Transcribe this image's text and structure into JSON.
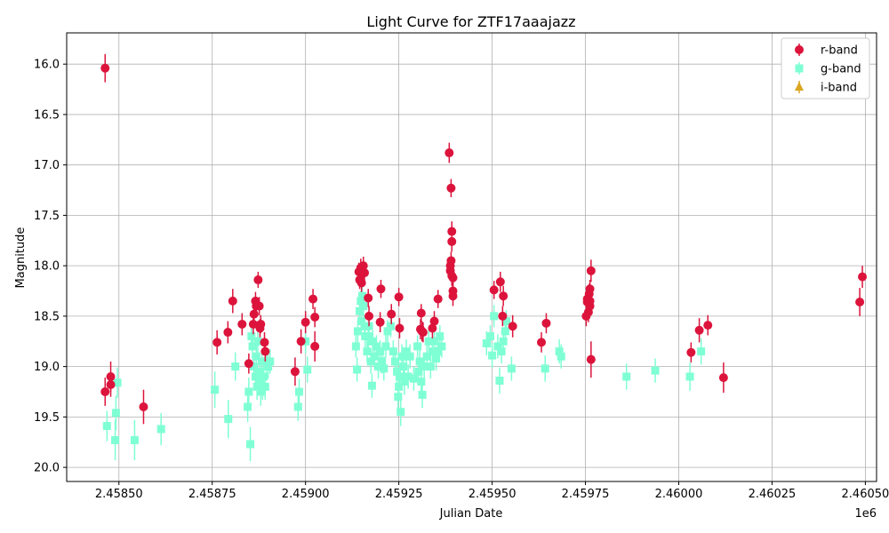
{
  "chart_data": {
    "type": "scatter",
    "title": "Light Curve for ZTF17aaajazz",
    "xlabel": "Julian Date",
    "ylabel": "Magnitude",
    "x_offset_label": "1e6",
    "xlim": [
      2.45836,
      2.46053
    ],
    "ylim": [
      20.14,
      15.69
    ],
    "y_inverted": true,
    "grid": true,
    "legend_position": "top-right",
    "x_ticks": [
      {
        "value": 2.4585,
        "label": "2.45850"
      },
      {
        "value": 2.45875,
        "label": "2.45875"
      },
      {
        "value": 2.459,
        "label": "2.45900"
      },
      {
        "value": 2.45925,
        "label": "2.45925"
      },
      {
        "value": 2.4595,
        "label": "2.45950"
      },
      {
        "value": 2.45975,
        "label": "2.45975"
      },
      {
        "value": 2.46,
        "label": "2.46000"
      },
      {
        "value": 2.46025,
        "label": "2.46025"
      },
      {
        "value": 2.4605,
        "label": "2.46050"
      }
    ],
    "y_ticks": [
      {
        "value": 16.0,
        "label": "16.0"
      },
      {
        "value": 16.5,
        "label": "16.5"
      },
      {
        "value": 17.0,
        "label": "17.0"
      },
      {
        "value": 17.5,
        "label": "17.5"
      },
      {
        "value": 18.0,
        "label": "18.0"
      },
      {
        "value": 18.5,
        "label": "18.5"
      },
      {
        "value": 19.0,
        "label": "19.0"
      },
      {
        "value": 19.5,
        "label": "19.5"
      },
      {
        "value": 20.0,
        "label": "20.0"
      }
    ],
    "series": [
      {
        "name": "r-band",
        "color": "#dc143c",
        "marker": "circle",
        "points": [
          [
            2.458463,
            16.04,
            0.14
          ],
          [
            2.458463,
            19.25,
            0.14
          ],
          [
            2.458478,
            19.1,
            0.15
          ],
          [
            2.458478,
            19.18,
            0.12
          ],
          [
            2.458566,
            19.4,
            0.17
          ],
          [
            2.458763,
            18.76,
            0.12
          ],
          [
            2.458792,
            18.66,
            0.11
          ],
          [
            2.458805,
            18.35,
            0.12
          ],
          [
            2.45883,
            18.58,
            0.11
          ],
          [
            2.458848,
            18.97,
            0.1
          ],
          [
            2.45886,
            18.58,
            0.1
          ],
          [
            2.458862,
            18.48,
            0.09
          ],
          [
            2.458866,
            18.35,
            0.09
          ],
          [
            2.458868,
            18.4,
            0.09
          ],
          [
            2.458873,
            18.14,
            0.08
          ],
          [
            2.458876,
            18.4,
            0.09
          ],
          [
            2.458878,
            18.62,
            0.09
          ],
          [
            2.45888,
            18.58,
            0.09
          ],
          [
            2.45889,
            18.76,
            0.1
          ],
          [
            2.458892,
            18.85,
            0.1
          ],
          [
            2.458972,
            19.05,
            0.14
          ],
          [
            2.458988,
            18.75,
            0.12
          ],
          [
            2.459,
            18.56,
            0.11
          ],
          [
            2.45902,
            18.33,
            0.1
          ],
          [
            2.459025,
            18.51,
            0.1
          ],
          [
            2.459025,
            18.8,
            0.15
          ],
          [
            2.459143,
            18.06,
            0.09
          ],
          [
            2.459145,
            18.14,
            0.09
          ],
          [
            2.459148,
            18.02,
            0.09
          ],
          [
            2.45915,
            18.17,
            0.09
          ],
          [
            2.459152,
            18.08,
            0.09
          ],
          [
            2.459155,
            18.0,
            0.09
          ],
          [
            2.459158,
            18.07,
            0.1
          ],
          [
            2.459168,
            18.32,
            0.09
          ],
          [
            2.45917,
            18.5,
            0.1
          ],
          [
            2.4592,
            18.56,
            0.1
          ],
          [
            2.459202,
            18.23,
            0.09
          ],
          [
            2.45923,
            18.48,
            0.1
          ],
          [
            2.45925,
            18.31,
            0.09
          ],
          [
            2.459252,
            18.62,
            0.1
          ],
          [
            2.459308,
            18.63,
            0.1
          ],
          [
            2.45931,
            18.47,
            0.09
          ],
          [
            2.459312,
            18.65,
            0.1
          ],
          [
            2.459315,
            18.66,
            0.1
          ],
          [
            2.45934,
            18.62,
            0.1
          ],
          [
            2.459345,
            18.55,
            0.1
          ],
          [
            2.459355,
            18.33,
            0.09
          ],
          [
            2.459385,
            16.88,
            0.1
          ],
          [
            2.459388,
            18.0,
            0.09
          ],
          [
            2.459388,
            18.05,
            0.09
          ],
          [
            2.45939,
            17.23,
            0.09
          ],
          [
            2.45939,
            17.95,
            0.09
          ],
          [
            2.459392,
            17.66,
            0.1
          ],
          [
            2.459392,
            17.76,
            0.1
          ],
          [
            2.459392,
            18.1,
            0.1
          ],
          [
            2.459395,
            18.25,
            0.1
          ],
          [
            2.459395,
            18.3,
            0.1
          ],
          [
            2.459395,
            18.12,
            0.1
          ],
          [
            2.459505,
            18.24,
            0.09
          ],
          [
            2.459522,
            18.16,
            0.1
          ],
          [
            2.459528,
            18.5,
            0.1
          ],
          [
            2.45953,
            18.3,
            0.1
          ],
          [
            2.459555,
            18.6,
            0.11
          ],
          [
            2.459632,
            18.76,
            0.1
          ],
          [
            2.459645,
            18.57,
            0.1
          ],
          [
            2.459752,
            18.5,
            0.1
          ],
          [
            2.459755,
            18.36,
            0.1
          ],
          [
            2.459755,
            18.33,
            0.1
          ],
          [
            2.459758,
            18.46,
            0.1
          ],
          [
            2.45976,
            18.28,
            0.1
          ],
          [
            2.459762,
            18.4,
            0.1
          ],
          [
            2.459762,
            18.35,
            0.1
          ],
          [
            2.459762,
            18.23,
            0.09
          ],
          [
            2.459765,
            18.05,
            0.11
          ],
          [
            2.459765,
            18.93,
            0.18
          ],
          [
            2.460033,
            18.86,
            0.1
          ],
          [
            2.460055,
            18.64,
            0.12
          ],
          [
            2.460078,
            18.59,
            0.1
          ],
          [
            2.46012,
            19.11,
            0.15
          ],
          [
            2.460485,
            18.36,
            0.14
          ],
          [
            2.460492,
            18.11,
            0.11
          ]
        ]
      },
      {
        "name": "g-band",
        "color": "#7fffd4",
        "marker": "square",
        "points": [
          [
            2.458468,
            19.59,
            0.15
          ],
          [
            2.45849,
            19.73,
            0.2
          ],
          [
            2.458492,
            19.46,
            0.17
          ],
          [
            2.458496,
            19.16,
            0.15
          ],
          [
            2.458542,
            19.73,
            0.2
          ],
          [
            2.458613,
            19.62,
            0.16
          ],
          [
            2.458757,
            19.23,
            0.18
          ],
          [
            2.458793,
            19.52,
            0.19
          ],
          [
            2.458812,
            19.0,
            0.14
          ],
          [
            2.458845,
            19.4,
            0.15
          ],
          [
            2.458848,
            19.25,
            0.14
          ],
          [
            2.458852,
            19.77,
            0.17
          ],
          [
            2.458855,
            18.7,
            0.12
          ],
          [
            2.458858,
            18.8,
            0.12
          ],
          [
            2.458862,
            19.0,
            0.13
          ],
          [
            2.458866,
            19.1,
            0.13
          ],
          [
            2.458868,
            18.9,
            0.12
          ],
          [
            2.45887,
            19.2,
            0.13
          ],
          [
            2.458872,
            18.75,
            0.12
          ],
          [
            2.458875,
            19.15,
            0.13
          ],
          [
            2.458878,
            19.05,
            0.12
          ],
          [
            2.45888,
            19.25,
            0.14
          ],
          [
            2.458883,
            18.95,
            0.12
          ],
          [
            2.458885,
            19.2,
            0.13
          ],
          [
            2.458888,
            19.1,
            0.12
          ],
          [
            2.458892,
            19.2,
            0.13
          ],
          [
            2.458895,
            18.95,
            0.12
          ],
          [
            2.4589,
            19.0,
            0.12
          ],
          [
            2.458905,
            18.95,
            0.12
          ],
          [
            2.45898,
            19.4,
            0.14
          ],
          [
            2.458983,
            19.25,
            0.13
          ],
          [
            2.459,
            18.75,
            0.12
          ],
          [
            2.459005,
            19.03,
            0.13
          ],
          [
            2.459135,
            18.8,
            0.11
          ],
          [
            2.459138,
            19.03,
            0.12
          ],
          [
            2.45914,
            18.65,
            0.11
          ],
          [
            2.459145,
            18.45,
            0.1
          ],
          [
            2.459148,
            18.35,
            0.1
          ],
          [
            2.45915,
            18.55,
            0.1
          ],
          [
            2.459152,
            18.3,
            0.1
          ],
          [
            2.459155,
            18.4,
            0.1
          ],
          [
            2.459158,
            18.6,
            0.11
          ],
          [
            2.45916,
            18.7,
            0.11
          ],
          [
            2.459165,
            18.85,
            0.11
          ],
          [
            2.459168,
            18.7,
            0.11
          ],
          [
            2.45917,
            18.6,
            0.11
          ],
          [
            2.459175,
            18.95,
            0.12
          ],
          [
            2.459178,
            19.19,
            0.12
          ],
          [
            2.45918,
            18.75,
            0.11
          ],
          [
            2.459185,
            18.9,
            0.12
          ],
          [
            2.45919,
            18.8,
            0.11
          ],
          [
            2.459195,
            19.0,
            0.12
          ],
          [
            2.4592,
            18.85,
            0.11
          ],
          [
            2.459205,
            18.95,
            0.12
          ],
          [
            2.45921,
            19.02,
            0.12
          ],
          [
            2.459215,
            18.8,
            0.11
          ],
          [
            2.45922,
            18.65,
            0.11
          ],
          [
            2.459228,
            18.6,
            0.11
          ],
          [
            2.459235,
            18.85,
            0.11
          ],
          [
            2.45924,
            18.95,
            0.12
          ],
          [
            2.459245,
            19.05,
            0.12
          ],
          [
            2.459248,
            19.3,
            0.13
          ],
          [
            2.45925,
            19.2,
            0.13
          ],
          [
            2.459252,
            19.1,
            0.12
          ],
          [
            2.459255,
            19.45,
            0.14
          ],
          [
            2.459258,
            18.9,
            0.12
          ],
          [
            2.459262,
            19.0,
            0.12
          ],
          [
            2.459265,
            19.15,
            0.13
          ],
          [
            2.45927,
            18.85,
            0.12
          ],
          [
            2.459275,
            19.1,
            0.12
          ],
          [
            2.45928,
            18.9,
            0.12
          ],
          [
            2.45929,
            19.12,
            0.12
          ],
          [
            2.4593,
            18.8,
            0.11
          ],
          [
            2.459303,
            19.05,
            0.12
          ],
          [
            2.459306,
            18.95,
            0.12
          ],
          [
            2.45931,
            19.15,
            0.13
          ],
          [
            2.459313,
            19.28,
            0.13
          ],
          [
            2.459318,
            19.0,
            0.12
          ],
          [
            2.459325,
            18.9,
            0.12
          ],
          [
            2.45933,
            18.75,
            0.11
          ],
          [
            2.459335,
            19.0,
            0.12
          ],
          [
            2.45934,
            18.85,
            0.11
          ],
          [
            2.459345,
            18.75,
            0.11
          ],
          [
            2.45935,
            18.92,
            0.12
          ],
          [
            2.459355,
            18.85,
            0.11
          ],
          [
            2.45936,
            18.7,
            0.11
          ],
          [
            2.459365,
            18.8,
            0.11
          ],
          [
            2.459485,
            18.77,
            0.12
          ],
          [
            2.459495,
            18.7,
            0.11
          ],
          [
            2.4595,
            18.89,
            0.12
          ],
          [
            2.459505,
            18.5,
            0.11
          ],
          [
            2.459515,
            18.8,
            0.12
          ],
          [
            2.45952,
            19.14,
            0.13
          ],
          [
            2.459525,
            18.85,
            0.12
          ],
          [
            2.45953,
            18.75,
            0.11
          ],
          [
            2.459535,
            18.65,
            0.11
          ],
          [
            2.459538,
            18.55,
            0.11
          ],
          [
            2.459552,
            19.02,
            0.12
          ],
          [
            2.459642,
            19.02,
            0.13
          ],
          [
            2.45968,
            18.85,
            0.12
          ],
          [
            2.459685,
            18.9,
            0.12
          ],
          [
            2.45986,
            19.1,
            0.13
          ],
          [
            2.459937,
            19.04,
            0.12
          ],
          [
            2.46003,
            19.1,
            0.14
          ],
          [
            2.46006,
            18.85,
            0.13
          ]
        ]
      },
      {
        "name": "i-band",
        "color": "#daa520",
        "marker": "triangle",
        "points": []
      }
    ]
  }
}
